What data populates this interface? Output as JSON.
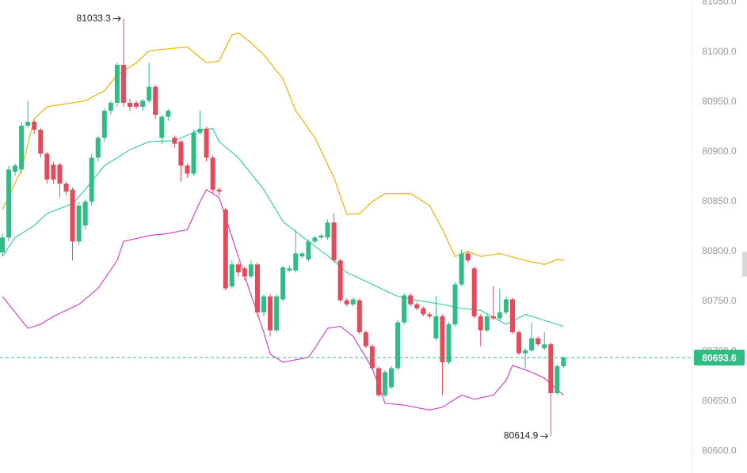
{
  "chart_data": {
    "type": "candlestick",
    "ylim": [
      80578,
      81052
    ],
    "yticks": [
      {
        "value": 80600,
        "label": "80600.0"
      },
      {
        "value": 80650,
        "label": "80650.0"
      },
      {
        "value": 80700,
        "label": "80700.0"
      },
      {
        "value": 80750,
        "label": "80750.0"
      },
      {
        "value": 80800,
        "label": "80800.0"
      },
      {
        "value": 80850,
        "label": "80850.0"
      },
      {
        "value": 80900,
        "label": "80900.0"
      },
      {
        "value": 80950,
        "label": "80950.0"
      },
      {
        "value": 81000,
        "label": "81000.0"
      },
      {
        "value": 81050,
        "label": "81050.0"
      }
    ],
    "up_color": "#2ebd85",
    "down_color": "#e5495a",
    "candles": {
      "open": [
        80799,
        80814,
        80880,
        80882,
        80926,
        80930,
        80922,
        80898,
        80887,
        80887,
        80868,
        80862,
        80810,
        80826,
        80850,
        80894,
        80914,
        80941,
        80949,
        80987,
        80949,
        80949,
        80945,
        80951,
        80965,
        80914,
        80935,
        80914,
        80910,
        80886,
        80878,
        80919,
        80923,
        80894,
        80862,
        80842,
        80765,
        80787,
        80783,
        80775,
        80787,
        80739,
        80755,
        80721,
        80752,
        80781,
        80781,
        80795,
        80792,
        80810,
        80814,
        80814,
        80829,
        80791,
        80751,
        80747,
        80751,
        80719,
        80705,
        80683,
        80656,
        80664,
        80683,
        80729,
        80756,
        80747,
        80743,
        80737,
        80713,
        80735,
        80689,
        80727,
        80767,
        80798,
        80783,
        80735,
        80721,
        80735,
        80733,
        80739,
        80752,
        80719,
        80698,
        80701,
        80713,
        80703,
        80707,
        80658,
        80685
      ],
      "high": [
        80818,
        80886,
        80888,
        80930,
        80951,
        80932,
        80924,
        80900,
        80890,
        80889,
        80870,
        80864,
        80850,
        80852,
        80898,
        80916,
        80943,
        80951,
        80989,
        81033.3,
        80953,
        80951,
        80953,
        80989,
        80967,
        80937,
        80943,
        80916,
        80912,
        80888,
        80922,
        80941,
        80925,
        80896,
        80864,
        80844,
        80791,
        80789,
        80785,
        80791,
        80789,
        80757,
        80757,
        80757,
        80786,
        80786,
        80822,
        80800,
        80812,
        80816,
        80818,
        80832,
        80838,
        80793,
        80753,
        80754,
        80753,
        80721,
        80707,
        80685,
        80681,
        80685,
        80731,
        80758,
        80758,
        80749,
        80745,
        80739,
        80755,
        80737,
        80729,
        80769,
        80802,
        80800,
        80785,
        80737,
        80737,
        80765,
        80763,
        80755,
        80754,
        80721,
        80703,
        80729,
        80715,
        80719,
        80709,
        80687,
        80695
      ],
      "low": [
        80795,
        80810,
        80876,
        80878,
        80924,
        80918,
        80894,
        80868,
        80868,
        80854,
        80856,
        80791,
        80806,
        80822,
        80846,
        80890,
        80910,
        80937,
        80945,
        80945,
        80941,
        80943,
        80941,
        80949,
        80933,
        80908,
        80931,
        80904,
        80870,
        80874,
        80876,
        80917,
        80890,
        80858,
        80856,
        80761,
        80763,
        80775,
        80771,
        80773,
        80735,
        80735,
        80715,
        80719,
        80750,
        80779,
        80779,
        80793,
        80790,
        80808,
        80812,
        80812,
        80789,
        80749,
        80745,
        80745,
        80717,
        80703,
        80681,
        80654,
        80654,
        80662,
        80681,
        80727,
        80745,
        80741,
        80735,
        80733,
        80711,
        80656,
        80687,
        80725,
        80765,
        80789,
        80733,
        80705,
        80719,
        80731,
        80731,
        80737,
        80717,
        80696,
        80683,
        80699,
        80705,
        80701,
        80614.9,
        80656,
        80683
      ],
      "close": [
        80814,
        80882,
        80886,
        80926,
        80930,
        80922,
        80898,
        80872,
        80872,
        80868,
        80860,
        80810,
        80846,
        80850,
        80894,
        80914,
        80941,
        80949,
        80987,
        80949,
        80945,
        80945,
        80951,
        80965,
        80937,
        80935,
        80941,
        80908,
        80886,
        80878,
        80919,
        80923,
        80894,
        80862,
        80860,
        80763,
        80787,
        80779,
        80775,
        80787,
        80739,
        80755,
        80721,
        80755,
        80784,
        80783,
        80798,
        80798,
        80810,
        80814,
        80816,
        80829,
        80791,
        80751,
        80747,
        80752,
        80719,
        80705,
        80683,
        80656,
        80679,
        80683,
        80729,
        80756,
        80747,
        80743,
        80737,
        80735,
        80735,
        80689,
        80727,
        80767,
        80798,
        80791,
        80735,
        80721,
        80735,
        80733,
        80739,
        80752,
        80719,
        80698,
        80701,
        80713,
        80707,
        80707,
        80658,
        80685,
        80693.6
      ]
    },
    "series": [
      {
        "color": "#f0b400",
        "x": [
          0,
          3,
          5,
          7,
          11,
          13,
          16,
          18,
          21,
          23,
          29,
          32,
          34,
          36,
          37,
          39,
          41,
          44,
          46,
          49,
          52,
          54,
          56,
          58,
          60,
          64,
          67,
          69,
          71,
          73,
          75,
          78,
          82,
          85,
          87,
          88
        ],
        "values": [
          80842,
          80882,
          80933,
          80945,
          80949,
          80951,
          80961,
          80977,
          80989,
          81001,
          81005,
          80989,
          80991,
          81017,
          81019,
          81009,
          80997,
          80973,
          80941,
          80914,
          80874,
          80837,
          80838,
          80850,
          80858,
          80858,
          80846,
          80822,
          80795,
          80800,
          80795,
          80798,
          80791,
          80787,
          80792,
          80791
        ]
      },
      {
        "color": "#3dcfa4",
        "x": [
          0,
          2,
          5,
          7,
          11,
          13,
          16,
          20,
          23,
          27,
          31,
          33,
          34,
          37,
          41,
          44,
          48,
          52,
          54,
          58,
          62,
          65,
          69,
          72,
          75,
          79,
          82,
          85,
          88
        ],
        "values": [
          80795,
          80814,
          80826,
          80838,
          80848,
          80862,
          80886,
          80902,
          80910,
          80911,
          80922,
          80923,
          80910,
          80894,
          80862,
          80830,
          80810,
          80791,
          80779,
          80767,
          80755,
          80751,
          80747,
          80743,
          80741,
          80727,
          80737,
          80731,
          80725
        ]
      },
      {
        "color": "#d946c8",
        "x": [
          0,
          2,
          4,
          6,
          8,
          12,
          15,
          18,
          19,
          23,
          26,
          29,
          31,
          32,
          34,
          38,
          41,
          42,
          44,
          48,
          49,
          51,
          53,
          55,
          58,
          60,
          63,
          67,
          69,
          72,
          74,
          77,
          79,
          80,
          83,
          85,
          88
        ],
        "values": [
          80755,
          80739,
          80723,
          80727,
          80735,
          80747,
          80763,
          80791,
          80810,
          80816,
          80818,
          80822,
          80850,
          80862,
          80854,
          80775,
          80719,
          80697,
          80689,
          80694,
          80703,
          80723,
          80725,
          80715,
          80683,
          80648,
          80646,
          80641,
          80644,
          80656,
          80652,
          80656,
          80671,
          80686,
          80679,
          80673,
          80656
        ]
      }
    ],
    "high_marker": 81033.3,
    "low_marker": 80614.9,
    "last_price": 80693.6,
    "last_price_color": "#2ebd85"
  }
}
